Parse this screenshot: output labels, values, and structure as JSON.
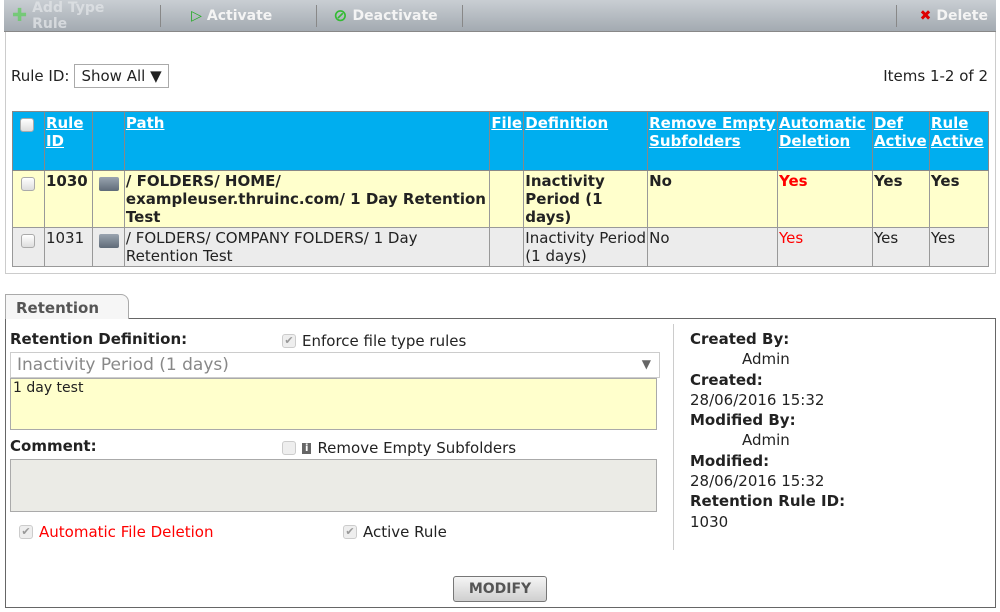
{
  "toolbar": {
    "add_type_rule": "Add Type Rule",
    "activate": "Activate",
    "deactivate": "Deactivate",
    "delete": "Delete"
  },
  "filter": {
    "label": "Rule ID:",
    "value": "Show All"
  },
  "items_count": "Items 1-2 of 2",
  "table": {
    "headers": [
      "Rule ID",
      "",
      "Path",
      "File",
      "Definition",
      "Remove Empty Subfolders",
      "Automatic Deletion",
      "Def Active",
      "Rule Active"
    ],
    "rows": [
      {
        "id": "1030",
        "path": "/ FOLDERS/ HOME/ exampleuser.thruinc.com/ 1 Day Retention Test",
        "file": "",
        "definition": "Inactivity Period (1 days)",
        "remove_empty": "No",
        "auto_delete": "Yes",
        "def_active": "Yes",
        "rule_active": "Yes",
        "selected": true
      },
      {
        "id": "1031",
        "path": "/ FOLDERS/ COMPANY FOLDERS/ 1 Day Retention Test",
        "file": "",
        "definition": "Inactivity Period (1 days)",
        "remove_empty": "No",
        "auto_delete": "Yes",
        "def_active": "Yes",
        "rule_active": "Yes",
        "selected": false
      }
    ]
  },
  "detail": {
    "tab": "Retention",
    "retention_definition_label": "Retention Definition:",
    "enforce_label": "Enforce file type rules",
    "enforce_checked": true,
    "definition_value": "Inactivity Period (1 days)",
    "description": "1 day test",
    "comment_label": "Comment:",
    "comment": "",
    "remove_empty_label": "Remove Empty Subfolders",
    "remove_empty_checked": false,
    "auto_delete_label": "Automatic File Deletion",
    "auto_delete_checked": true,
    "active_rule_label": "Active Rule",
    "active_rule_checked": true,
    "modify": "MODIFY",
    "meta": {
      "created_by_label": "Created By:",
      "created_by": "Admin",
      "created_label": "Created:",
      "created": "28/06/2016 15:32",
      "modified_by_label": "Modified By:",
      "modified_by": "Admin",
      "modified_label": "Modified:",
      "modified": "28/06/2016 15:32",
      "rule_id_label": "Retention Rule ID:",
      "rule_id": "1030"
    }
  },
  "colors": {
    "header": "#00aeef",
    "selected_row": "#ffffcc",
    "alert": "#ff0000"
  }
}
